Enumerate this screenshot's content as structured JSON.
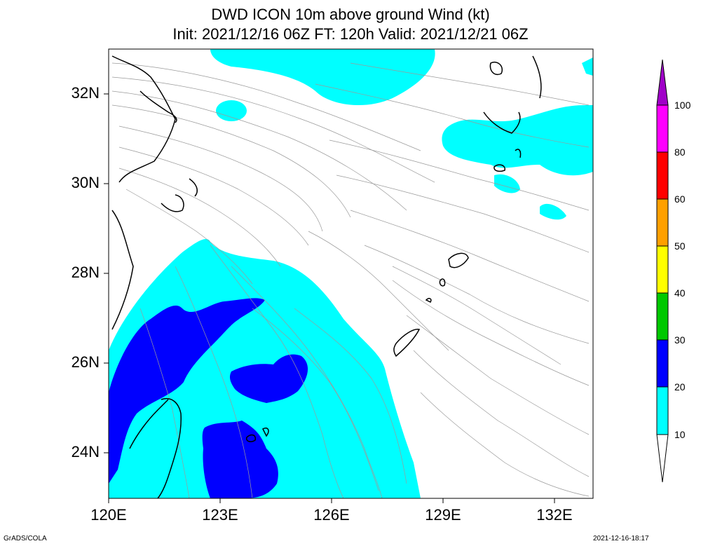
{
  "header": {
    "title_line1": "DWD ICON 10m above ground Wind (kt)",
    "title_line2": "Init: 2021/12/16 06Z  FT: 120h  Valid: 2021/12/21 06Z"
  },
  "axes": {
    "lat_labels": [
      "32N",
      "30N",
      "28N",
      "26N",
      "24N"
    ],
    "lon_labels": [
      "120E",
      "123E",
      "126E",
      "129E",
      "132E"
    ]
  },
  "colorbar": {
    "labels": [
      "100",
      "80",
      "60",
      "50",
      "40",
      "30",
      "20",
      "10"
    ],
    "colors": [
      "#a000c8",
      "#ff00ff",
      "#ff0000",
      "#ffa000",
      "#ffff00",
      "#00c800",
      "#0000ff",
      "#00ffff",
      "#ffffff"
    ]
  },
  "footer": {
    "left": "GrADS/COLA",
    "right": "2021-12-16-18:17"
  }
}
